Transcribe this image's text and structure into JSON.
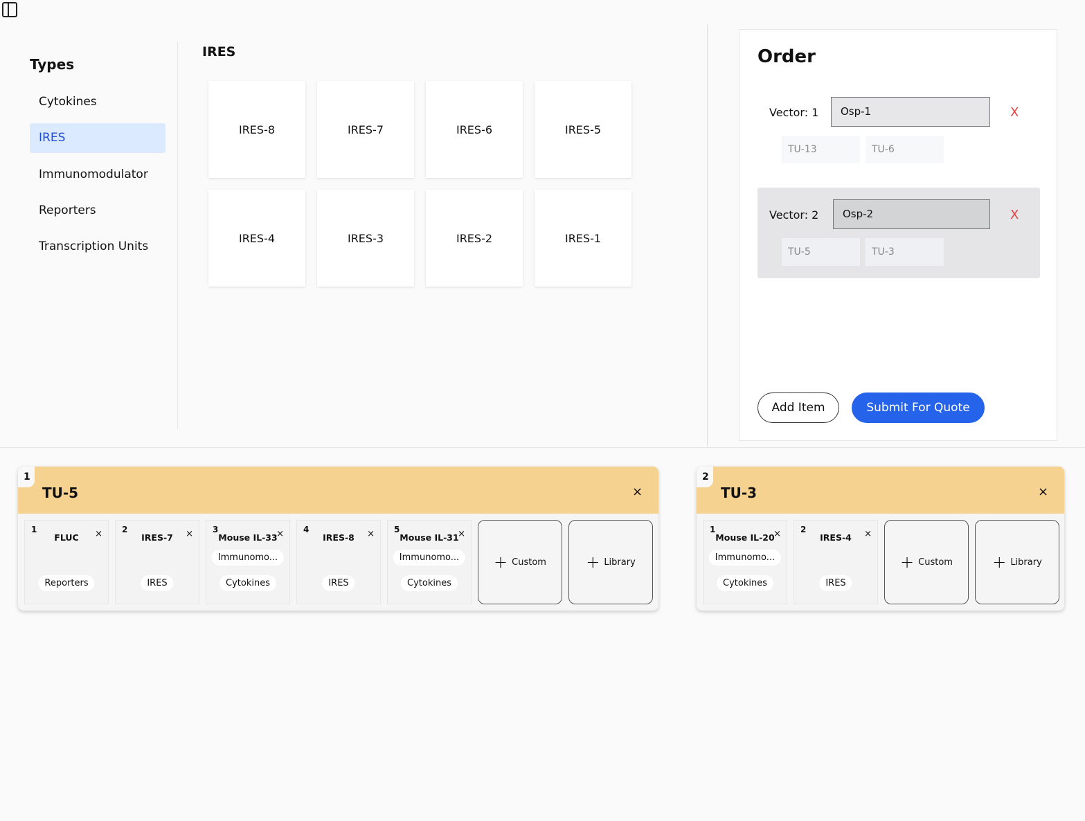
{
  "sidebar": {
    "title": "Types",
    "items": [
      "Cytokines",
      "IRES",
      "Immunomodulator",
      "Reporters",
      "Transcription Units"
    ],
    "selected": "IRES"
  },
  "main": {
    "title": "IRES",
    "tiles": [
      "IRES-8",
      "IRES-7",
      "IRES-6",
      "IRES-5",
      "IRES-4",
      "IRES-3",
      "IRES-2",
      "IRES-1"
    ]
  },
  "order": {
    "title": "Order",
    "vectors": [
      {
        "label": "Vector: 1",
        "value": "Osp-1",
        "remove": "X",
        "units": [
          "TU-13",
          "TU-6"
        ]
      },
      {
        "label": "Vector: 2",
        "value": "Osp-2",
        "remove": "X",
        "units": [
          "TU-5",
          "TU-3"
        ]
      }
    ],
    "add_label": "Add Item",
    "submit_label": "Submit For Quote"
  },
  "tu_cards": [
    {
      "index": "1",
      "name": "TU-5",
      "close": "×",
      "parts": [
        {
          "num": "1",
          "name": "FLUC",
          "tags": [
            "Reporters"
          ]
        },
        {
          "num": "2",
          "name": "IRES-7",
          "tags": [
            "IRES"
          ]
        },
        {
          "num": "3",
          "name": "Mouse IL-33",
          "tags": [
            "Immunomo...",
            "Cytokines"
          ]
        },
        {
          "num": "4",
          "name": "IRES-8",
          "tags": [
            "IRES"
          ]
        },
        {
          "num": "5",
          "name": "Mouse IL-31",
          "tags": [
            "Immunomo...",
            "Cytokines"
          ]
        }
      ],
      "custom_label": "Custom",
      "library_label": "Library"
    },
    {
      "index": "2",
      "name": "TU-3",
      "close": "×",
      "parts": [
        {
          "num": "1",
          "name": "Mouse IL-20",
          "tags": [
            "Immunomo...",
            "Cytokines"
          ]
        },
        {
          "num": "2",
          "name": "IRES-4",
          "tags": [
            "IRES"
          ]
        }
      ],
      "custom_label": "Custom",
      "library_label": "Library"
    }
  ],
  "colors": {
    "accent": "#2563eb",
    "selected_bg": "#dbeafe",
    "tu_header": "#f6d291",
    "remove": "#e04444"
  }
}
